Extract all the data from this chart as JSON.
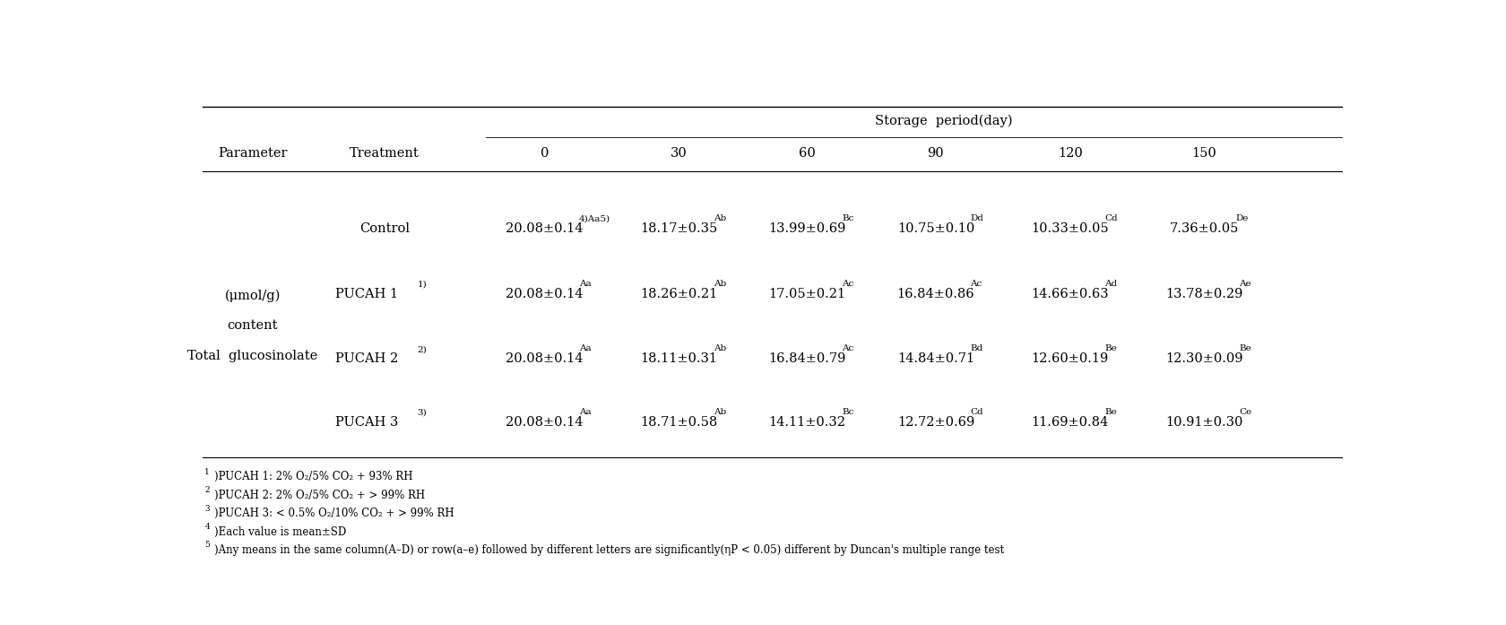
{
  "title": "Storage  period(day)",
  "col_headers": [
    "0",
    "30",
    "60",
    "90",
    "120",
    "150"
  ],
  "param_label_lines": [
    "Total  glucosinolate",
    "content",
    "(μmol/g)"
  ],
  "treatment_col_header": "Treatment",
  "parameter_col_header": "Parameter",
  "treatment_labels": [
    "Control",
    "PUCAH 1",
    "PUCAH 2",
    "PUCAH 3"
  ],
  "treatment_superscripts": [
    "",
    "1)",
    "2)",
    "3)"
  ],
  "data_main": [
    [
      "20.08±0.14",
      "18.17±0.35",
      "13.99±0.69",
      "10.75±0.10",
      "10.33±0.05",
      "7.36±0.05"
    ],
    [
      "20.08±0.14",
      "18.26±0.21",
      "17.05±0.21",
      "16.84±0.86",
      "14.66±0.63",
      "13.78±0.29"
    ],
    [
      "20.08±0.14",
      "18.11±0.31",
      "16.84±0.79",
      "14.84±0.71",
      "12.60±0.19",
      "12.30±0.09"
    ],
    [
      "20.08±0.14",
      "18.71±0.58",
      "14.11±0.32",
      "12.72±0.69",
      "11.69±0.84",
      "10.91±0.30"
    ]
  ],
  "data_superscripts": [
    [
      "4)Aa5)",
      "Ab",
      "Bc",
      "Dd",
      "Cd",
      "De"
    ],
    [
      "Aa",
      "Ab",
      "Ac",
      "Ac",
      "Ad",
      "Ae"
    ],
    [
      "Aa",
      "Ab",
      "Ac",
      "Bd",
      "Be",
      "Be"
    ],
    [
      "Aa",
      "Ab",
      "Bc",
      "Cd",
      "Be",
      "Ce"
    ]
  ],
  "footnote_supers": [
    "1)",
    "2)",
    "3)",
    "4)",
    "5)"
  ],
  "footnote_texts": [
    "PUCAH 1: 2% O₂/5% CO₂ + 93% RH",
    "PUCAH 2: 2% O₂/5% CO₂ + > 99% RH",
    "PUCAH 3: < 0.5% O₂/10% CO₂ + > 99% RH",
    "Each value is mean±SD",
    "Any means in the same column(A–D) or row(a–e) followed by different letters are significantly(ηP < 0.05) different by Duncan's multiple range test"
  ],
  "bg_color": "#ffffff",
  "text_color": "#000000",
  "font_size": 10.5,
  "small_font_size": 7.5,
  "footnote_font_size": 8.5,
  "footnote_super_size": 6.5
}
